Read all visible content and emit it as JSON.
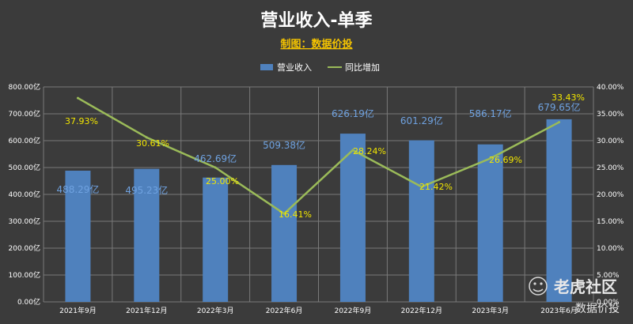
{
  "colors": {
    "background": "#3b3b3b",
    "bar": "#4f81bd",
    "line": "#9bbb59",
    "bar_label": "#6fa2e0",
    "line_label": "#f2e600",
    "grid": "#7a7a7a"
  },
  "watermark": {
    "brand": "老虎社区",
    "sub": "数据价投",
    "icon": "tiger-logo-icon"
  },
  "chart_data": {
    "type": "bar",
    "title": "营业收入-单季",
    "subtitle": "制图：数据价投",
    "legend_position": "top-center",
    "grid": true,
    "categories": [
      "2021年9月",
      "2021年12月",
      "2022年3月",
      "2022年6月",
      "2022年9月",
      "2022年12月",
      "2023年3月",
      "2023年6月"
    ],
    "series": [
      {
        "name": "营业收入",
        "type": "bar",
        "axis": "left",
        "values": [
          488.29,
          495.23,
          462.69,
          509.38,
          626.19,
          601.29,
          586.17,
          679.65
        ],
        "labels": [
          "488.29亿",
          "495.23亿",
          "462.69亿",
          "509.38亿",
          "626.19亿",
          "601.29亿",
          "586.17亿",
          "679.65亿"
        ]
      },
      {
        "name": "同比增加",
        "type": "line",
        "axis": "right",
        "values": [
          37.93,
          30.61,
          25.0,
          16.41,
          28.24,
          21.42,
          26.69,
          33.43
        ],
        "labels": [
          "37.93%",
          "30.61%",
          "25.00%",
          "16.41%",
          "28.24%",
          "21.42%",
          "26.69%",
          "33.43%"
        ]
      }
    ],
    "left_axis": {
      "ylim": [
        0,
        800
      ],
      "ticks": [
        "0.00亿",
        "100.00亿",
        "200.00亿",
        "300.00亿",
        "400.00亿",
        "500.00亿",
        "600.00亿",
        "700.00亿",
        "800.00亿"
      ]
    },
    "right_axis": {
      "ylim": [
        0,
        40
      ],
      "ticks": [
        "0.00%",
        "5.00%",
        "10.00%",
        "15.00%",
        "20.00%",
        "25.00%",
        "30.00%",
        "35.00%",
        "40.00%"
      ]
    }
  }
}
